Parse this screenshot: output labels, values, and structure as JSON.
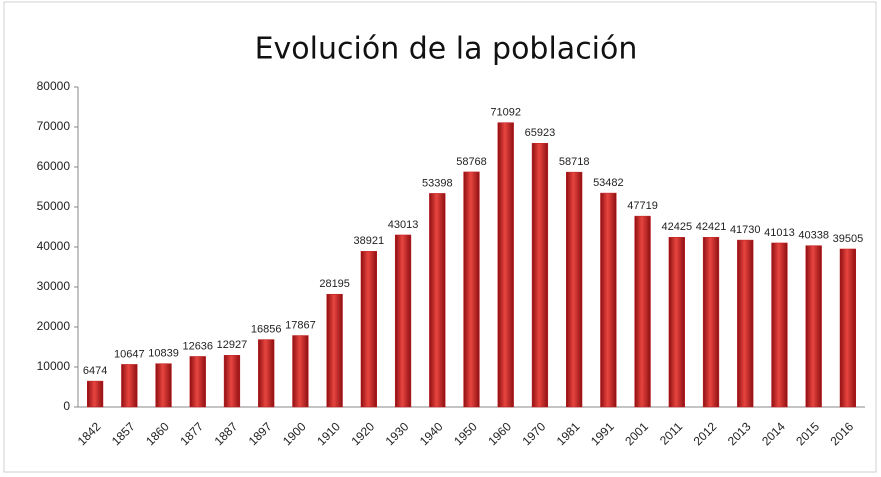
{
  "chart_data": {
    "type": "bar",
    "title": "Evolución de la población",
    "categories": [
      "1842",
      "1857",
      "1860",
      "1877",
      "1887",
      "1897",
      "1900",
      "1910",
      "1920",
      "1930",
      "1940",
      "1950",
      "1960",
      "1970",
      "1981",
      "1991",
      "2001",
      "2011",
      "2012",
      "2013",
      "2014",
      "2015",
      "2016"
    ],
    "values": [
      6474,
      10647,
      10839,
      12636,
      12927,
      16856,
      17867,
      28195,
      38921,
      43013,
      53398,
      58768,
      71092,
      65923,
      58718,
      53482,
      47719,
      42425,
      42421,
      41730,
      41013,
      40338,
      39505
    ],
    "color": "#c0191c",
    "ylim": [
      0,
      80000
    ],
    "yticks": [
      0,
      10000,
      20000,
      30000,
      40000,
      50000,
      60000,
      70000,
      80000
    ],
    "grid": false
  }
}
